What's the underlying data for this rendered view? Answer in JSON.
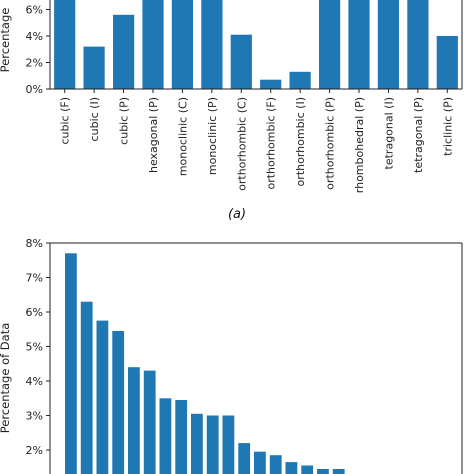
{
  "chart_data": [
    {
      "type": "bar",
      "caption": "(a)",
      "ylabel": "Percentage",
      "ylim": [
        0,
        8
      ],
      "yticks": [
        0,
        2,
        4,
        6
      ],
      "ytick_labels": [
        "0%",
        "2%",
        "4%",
        "6%"
      ],
      "color": "#1f77b4",
      "categories": [
        "cubic (F)",
        "cubic (I)",
        "cubic (P)",
        "hexagonal (P)",
        "monoclinic (C)",
        "monoclinic (P)",
        "orthorhombic (C)",
        "orthorhombic (F)",
        "orthorhombic (I)",
        "orthorhombic (P)",
        "rhombohedral (P)",
        "tetragonal (I)",
        "tetragonal (P)",
        "triclinic (P)"
      ],
      "values": [
        8.0,
        3.2,
        5.6,
        8.0,
        8.0,
        8.0,
        4.1,
        0.7,
        1.3,
        8.0,
        8.0,
        8.0,
        6.9,
        4.0
      ]
    },
    {
      "type": "bar",
      "ylabel": "Percentage of Data",
      "ylim": [
        1.5,
        8.0
      ],
      "yticks": [
        2,
        3,
        4,
        5,
        6,
        7,
        8
      ],
      "ytick_labels": [
        "2%",
        "3%",
        "4%",
        "5%",
        "6%",
        "7%",
        "8%"
      ],
      "color": "#1f77b4",
      "values": [
        7.7,
        6.3,
        5.75,
        5.45,
        4.4,
        4.3,
        3.5,
        3.45,
        3.05,
        3.0,
        3.0,
        2.2,
        1.95,
        1.85,
        1.65,
        1.55,
        1.45,
        1.45
      ]
    }
  ]
}
